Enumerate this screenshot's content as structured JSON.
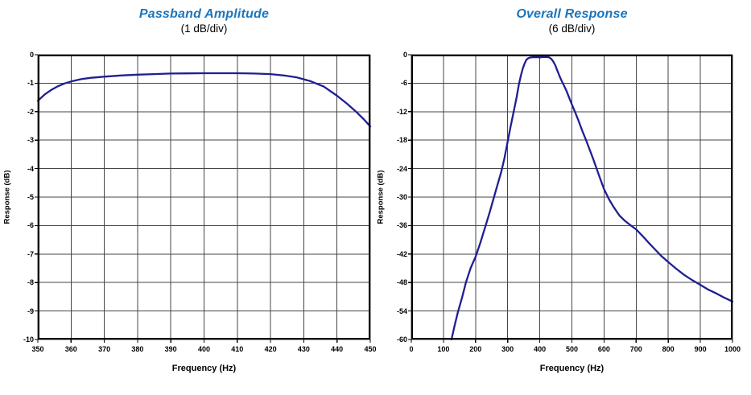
{
  "colors": {
    "title": "#1b75bc",
    "curve": "#1f1f93",
    "grid": "#454545",
    "frame": "#000000",
    "background": "#ffffff"
  },
  "chart_data": [
    {
      "type": "line",
      "title": "Passband Amplitude",
      "subtitle": "(1 dB/div)",
      "xlabel": "Frequency (Hz)",
      "ylabel": "Response (dB)",
      "xlim": [
        350,
        450
      ],
      "ylim": [
        -10,
        0
      ],
      "x_ticks": [
        350,
        360,
        370,
        380,
        390,
        400,
        410,
        420,
        430,
        440,
        450
      ],
      "y_ticks": [
        0,
        -1,
        -2,
        -3,
        -4,
        -5,
        -6,
        -7,
        -8,
        -9,
        -10
      ],
      "grid": true,
      "legend": "none",
      "line_color": "#1f1f93",
      "points": [
        [
          350,
          -1.62
        ],
        [
          352,
          -1.4
        ],
        [
          354,
          -1.24
        ],
        [
          356,
          -1.11
        ],
        [
          358,
          -1.01
        ],
        [
          360,
          -0.94
        ],
        [
          363,
          -0.86
        ],
        [
          366,
          -0.81
        ],
        [
          370,
          -0.77
        ],
        [
          375,
          -0.73
        ],
        [
          380,
          -0.7
        ],
        [
          385,
          -0.68
        ],
        [
          390,
          -0.66
        ],
        [
          395,
          -0.655
        ],
        [
          400,
          -0.65
        ],
        [
          405,
          -0.65
        ],
        [
          410,
          -0.65
        ],
        [
          415,
          -0.66
        ],
        [
          420,
          -0.68
        ],
        [
          424,
          -0.73
        ],
        [
          428,
          -0.8
        ],
        [
          432,
          -0.93
        ],
        [
          436,
          -1.12
        ],
        [
          440,
          -1.44
        ],
        [
          443,
          -1.72
        ],
        [
          446,
          -2.03
        ],
        [
          448,
          -2.26
        ],
        [
          450,
          -2.52
        ]
      ]
    },
    {
      "type": "line",
      "title": "Overall Response",
      "subtitle": "(6 dB/div)",
      "xlabel": "Frequency (Hz)",
      "ylabel": "Response (dB)",
      "xlim": [
        0,
        1000
      ],
      "ylim": [
        -60,
        0
      ],
      "x_ticks": [
        0,
        100,
        200,
        300,
        400,
        500,
        600,
        700,
        800,
        900,
        1000
      ],
      "y_ticks": [
        0,
        -6,
        -12,
        -18,
        -24,
        -30,
        -36,
        -42,
        -48,
        -54,
        -60
      ],
      "grid": true,
      "legend": "none",
      "line_color": "#1f1f93",
      "points": [
        [
          125,
          -60
        ],
        [
          135,
          -57
        ],
        [
          145,
          -54.2
        ],
        [
          158,
          -51.2
        ],
        [
          170,
          -48
        ],
        [
          185,
          -44.9
        ],
        [
          200,
          -42.6
        ],
        [
          215,
          -39.6
        ],
        [
          230,
          -36.3
        ],
        [
          243,
          -33.4
        ],
        [
          255,
          -30.6
        ],
        [
          268,
          -27.5
        ],
        [
          280,
          -24.7
        ],
        [
          290,
          -21.8
        ],
        [
          300,
          -18.3
        ],
        [
          308,
          -15.5
        ],
        [
          315,
          -13.2
        ],
        [
          322,
          -10.9
        ],
        [
          328,
          -8.9
        ],
        [
          335,
          -6.2
        ],
        [
          341,
          -4.4
        ],
        [
          347,
          -2.9
        ],
        [
          352,
          -2.0
        ],
        [
          358,
          -1.1
        ],
        [
          364,
          -0.75
        ],
        [
          370,
          -0.6
        ],
        [
          378,
          -0.52
        ],
        [
          386,
          -0.5
        ],
        [
          394,
          -0.52
        ],
        [
          400,
          -0.56
        ],
        [
          407,
          -0.5
        ],
        [
          415,
          -0.45
        ],
        [
          423,
          -0.48
        ],
        [
          430,
          -0.6
        ],
        [
          436,
          -0.9
        ],
        [
          442,
          -1.45
        ],
        [
          448,
          -2.2
        ],
        [
          454,
          -3.2
        ],
        [
          461,
          -4.4
        ],
        [
          468,
          -5.5
        ],
        [
          476,
          -6.6
        ],
        [
          483,
          -7.6
        ],
        [
          490,
          -8.8
        ],
        [
          500,
          -10.5
        ],
        [
          510,
          -12.1
        ],
        [
          520,
          -13.8
        ],
        [
          532,
          -16
        ],
        [
          544,
          -18
        ],
        [
          556,
          -20.1
        ],
        [
          566,
          -21.9
        ],
        [
          577,
          -24
        ],
        [
          588,
          -26.1
        ],
        [
          600,
          -28.3
        ],
        [
          615,
          -30.4
        ],
        [
          630,
          -32.1
        ],
        [
          648,
          -33.9
        ],
        [
          665,
          -35
        ],
        [
          684,
          -36
        ],
        [
          700,
          -36.8
        ],
        [
          720,
          -38.2
        ],
        [
          740,
          -39.7
        ],
        [
          760,
          -41.1
        ],
        [
          780,
          -42.5
        ],
        [
          800,
          -43.7
        ],
        [
          825,
          -45.1
        ],
        [
          850,
          -46.4
        ],
        [
          875,
          -47.5
        ],
        [
          900,
          -48.5
        ],
        [
          925,
          -49.5
        ],
        [
          950,
          -50.3
        ],
        [
          975,
          -51.2
        ],
        [
          1000,
          -52
        ]
      ]
    }
  ]
}
